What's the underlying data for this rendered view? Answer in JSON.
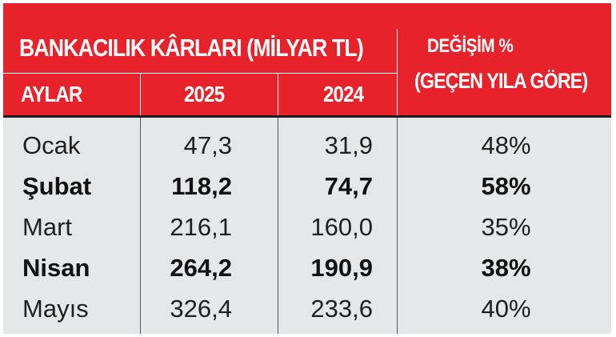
{
  "chart_data": {
    "type": "table",
    "title": "BANKACILIK KÂRLARI (MİLYAR TL)",
    "change_header_line1": "DEĞİŞİM %",
    "change_header_line2": "(GEÇEN YILA GÖRE)",
    "columns": [
      "AYLAR",
      "2025",
      "2024"
    ],
    "rows": [
      {
        "month": "Ocak",
        "v2025": "47,3",
        "v2024": "31,9",
        "change": "48%",
        "bold": false
      },
      {
        "month": "Şubat",
        "v2025": "118,2",
        "v2024": "74,7",
        "change": "58%",
        "bold": true
      },
      {
        "month": "Mart",
        "v2025": "216,1",
        "v2024": "160,0",
        "change": "35%",
        "bold": false
      },
      {
        "month": "Nisan",
        "v2025": "264,2",
        "v2024": "190,9",
        "change": "38%",
        "bold": true
      },
      {
        "month": "Mayıs",
        "v2025": "326,4",
        "v2024": "233,6",
        "change": "40%",
        "bold": false
      }
    ],
    "values_2025": [
      47.3,
      118.2,
      216.1,
      264.2,
      326.4
    ],
    "values_2024": [
      31.9,
      74.7,
      160.0,
      190.9,
      233.6
    ],
    "change_percent": [
      48,
      58,
      35,
      38,
      40
    ]
  },
  "colors": {
    "header_bg": "#e8222b",
    "header_text": "#ffffff",
    "body_bg": "#e6e7e8",
    "body_text": "#1f1f1f"
  }
}
